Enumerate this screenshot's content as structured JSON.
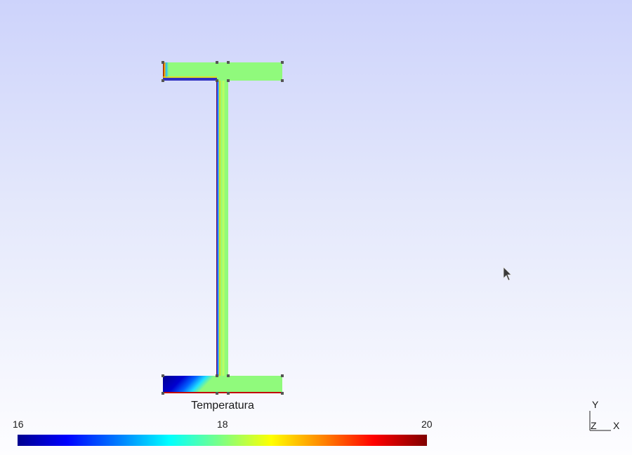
{
  "legend": {
    "title": "Temperatura",
    "min_label": "16",
    "mid_label": "18",
    "max_label": "20",
    "range": [
      16,
      20
    ]
  },
  "axes_triad": {
    "y_label": "Y",
    "z_label": "Z",
    "x_label": "X"
  },
  "colors": {
    "field_uniform": "#90fa7c",
    "cold": "#00008f",
    "hot": "#800000",
    "node_marker": "#555555"
  }
}
